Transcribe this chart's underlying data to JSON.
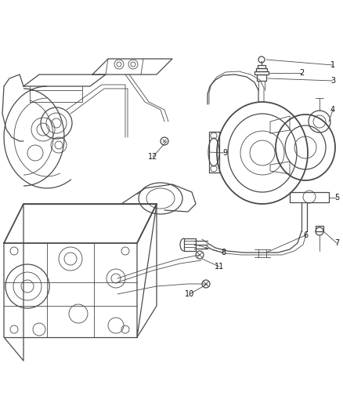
{
  "background_color": "#ffffff",
  "line_color": "#4a4a4a",
  "label_color": "#111111",
  "fig_width": 4.38,
  "fig_height": 5.33,
  "dpi": 100
}
